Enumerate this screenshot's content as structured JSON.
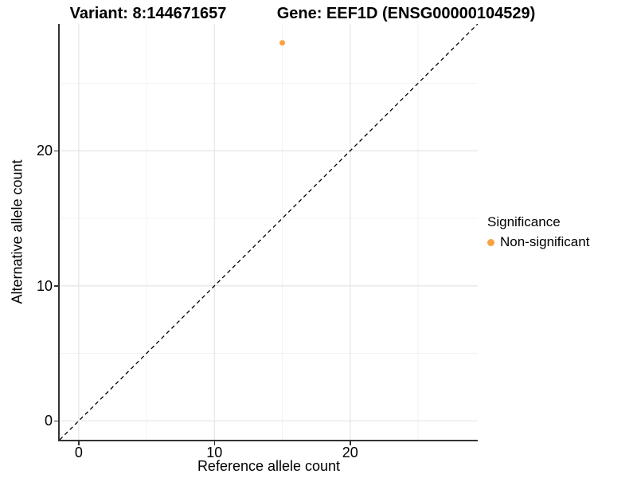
{
  "figure": {
    "title_left": "Variant: 8:144671657",
    "title_right": "Gene: EEF1D (ENSG00000104529)"
  },
  "chart_data": {
    "type": "scatter",
    "title_left": "Variant: 8:144671657",
    "title_right": "Gene: EEF1D (ENSG00000104529)",
    "xlabel": "Reference allele count",
    "ylabel": "Alternative allele count",
    "xlim": [
      -1.4,
      29.4
    ],
    "ylim": [
      -1.4,
      29.4
    ],
    "x_ticks": [
      0,
      10,
      20
    ],
    "y_ticks": [
      0,
      10,
      20
    ],
    "x_minor": [
      5,
      15,
      25
    ],
    "y_minor": [
      5,
      15,
      25
    ],
    "grid": "major-and-minor",
    "points": [
      {
        "x": 15,
        "y": 28,
        "series": "Non-significant",
        "color": "#F9A242"
      }
    ],
    "identity_line": {
      "slope": 1,
      "intercept": 0,
      "style": "dashed",
      "color": "#000000"
    },
    "legend": {
      "title": "Significance",
      "position": "right-center",
      "items": [
        {
          "label": "Non-significant",
          "color": "#F9A242"
        }
      ]
    },
    "colors": {
      "background": "#FFFFFF",
      "grid_major": "#E7E7E7",
      "grid_minor": "#F1F1F1",
      "axis": "#333333",
      "text": "#000000"
    }
  }
}
